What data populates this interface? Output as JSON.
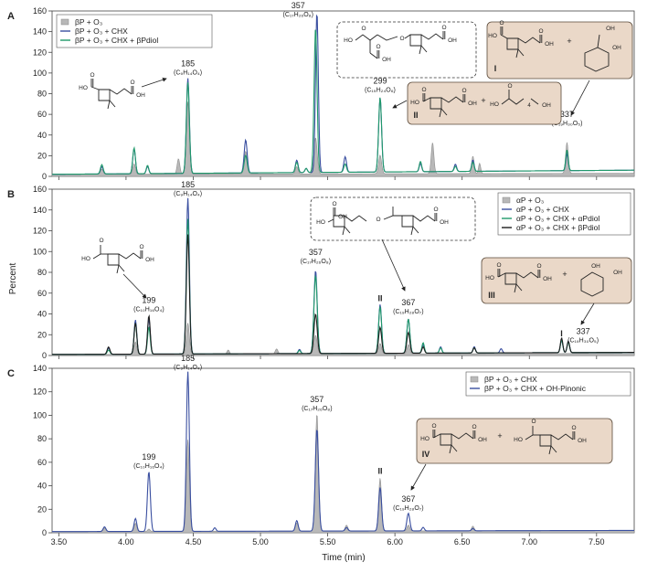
{
  "chart_data": {
    "type": "line",
    "xlabel": "Time (min)",
    "ylabel": "Percent",
    "xlim": [
      3.45,
      7.78
    ],
    "x_ticks": [
      "3.50",
      "4.00",
      "4.50",
      "5.00",
      "5.50",
      "6.00",
      "6.50",
      "7.00",
      "7.50"
    ],
    "x_tick_values": [
      3.5,
      4.0,
      4.5,
      5.0,
      5.5,
      6.0,
      6.5,
      7.0,
      7.5
    ],
    "colors": {
      "gray": "#b8b8b8",
      "blue": "#3a4fa0",
      "green": "#1f9a6a",
      "black": "#1d1d1d",
      "box": "#ead8c8"
    },
    "panels": [
      {
        "letter": "A",
        "ylim": [
          0,
          160
        ],
        "y_ticks": [
          "0",
          "20",
          "40",
          "60",
          "80",
          "100",
          "120",
          "140",
          "160"
        ],
        "legend": [
          "βP + O₃",
          "βP + O₃ + CHX",
          "βP + O₃ + CHX + βPdiol"
        ],
        "series": [
          {
            "name": "βP + O₃",
            "style": "gray-fill",
            "baseline": [
              2,
              3
            ],
            "peaks": [
              [
                3.82,
                5,
                0.01
              ],
              [
                4.06,
                10,
                0.01
              ],
              [
                4.39,
                15,
                0.01
              ],
              [
                4.46,
                70,
                0.011
              ],
              [
                4.89,
                22,
                0.011
              ],
              [
                5.27,
                7,
                0.01
              ],
              [
                5.41,
                35,
                0.012
              ],
              [
                5.89,
                18,
                0.011
              ],
              [
                6.28,
                30,
                0.01
              ],
              [
                6.58,
                17,
                0.009
              ],
              [
                6.63,
                10,
                0.008
              ],
              [
                7.28,
                30,
                0.01
              ]
            ]
          },
          {
            "name": "βP + O₃ + CHX",
            "style": "blue",
            "baseline": [
              2,
              6
            ],
            "peaks": [
              [
                3.82,
                7,
                0.01
              ],
              [
                4.06,
                24,
                0.01
              ],
              [
                4.16,
                7,
                0.009
              ],
              [
                4.46,
                92,
                0.011
              ],
              [
                4.89,
                32,
                0.011
              ],
              [
                5.27,
                12,
                0.01
              ],
              [
                5.34,
                4,
                0.009
              ],
              [
                5.42,
                155,
                0.0105
              ],
              [
                5.63,
                15,
                0.01
              ],
              [
                5.89,
                72,
                0.011
              ],
              [
                6.19,
                8,
                0.009
              ],
              [
                6.45,
                7,
                0.009
              ],
              [
                6.58,
                11,
                0.009
              ],
              [
                7.28,
                16,
                0.009
              ]
            ]
          },
          {
            "name": "βP + O₃ + CHX + βPdiol",
            "style": "green",
            "baseline": [
              2,
              6
            ],
            "peaks": [
              [
                3.82,
                9,
                0.01
              ],
              [
                4.06,
                25,
                0.01
              ],
              [
                4.16,
                8,
                0.009
              ],
              [
                4.46,
                88,
                0.011
              ],
              [
                4.89,
                17,
                0.011
              ],
              [
                5.27,
                10,
                0.01
              ],
              [
                5.34,
                4,
                0.009
              ],
              [
                5.41,
                140,
                0.011
              ],
              [
                5.63,
                8,
                0.01
              ],
              [
                5.89,
                72,
                0.011
              ],
              [
                6.19,
                10,
                0.009
              ],
              [
                6.45,
                5,
                0.009
              ],
              [
                6.58,
                9,
                0.009
              ],
              [
                7.28,
                20,
                0.009
              ]
            ]
          }
        ],
        "annotations": [
          {
            "mz": "185",
            "formula": "(C₉H₁₄O₄)",
            "x": 4.46,
            "y": 96
          },
          {
            "mz": "357",
            "formula": "(C₁₇H₂₆O₈)",
            "x": 5.28,
            "y": 152
          },
          {
            "mz": "299",
            "formula": "(C₁₅H₂₄O₆)",
            "x": 5.89,
            "y": 79
          },
          {
            "mz": "337",
            "formula": "(C₁₉H₃₀O₅)",
            "x": 7.28,
            "y": 47
          }
        ],
        "boxes": [
          {
            "label": "I"
          },
          {
            "label": "II"
          }
        ]
      },
      {
        "letter": "B",
        "ylim": [
          0,
          160
        ],
        "y_ticks": [
          "0",
          "20",
          "40",
          "60",
          "80",
          "100",
          "120",
          "140",
          "160"
        ],
        "legend": [
          "αP + O₃",
          "αP + O₃ + CHX",
          "αP + O₃ + CHX + αPdiol",
          "αP + O₃ + CHX + βPdiol"
        ],
        "series": [
          {
            "name": "αP + O₃",
            "style": "gray-fill",
            "baseline": [
              1,
              2
            ],
            "peaks": [
              [
                4.07,
                12,
                0.01
              ],
              [
                4.46,
                30,
                0.011
              ],
              [
                4.76,
                4,
                0.009
              ],
              [
                5.12,
                5,
                0.01
              ],
              [
                5.41,
                18,
                0.012
              ],
              [
                5.89,
                10,
                0.011
              ],
              [
                6.1,
                9,
                0.01
              ]
            ]
          },
          {
            "name": "αP + O₃ + CHX",
            "style": "blue",
            "baseline": [
              1,
              3
            ],
            "peaks": [
              [
                3.87,
                6,
                0.01
              ],
              [
                4.07,
                33,
                0.01
              ],
              [
                4.17,
                34,
                0.01
              ],
              [
                4.46,
                150,
                0.011
              ],
              [
                5.29,
                4,
                0.009
              ],
              [
                5.41,
                80,
                0.012
              ],
              [
                5.89,
                47,
                0.011
              ],
              [
                6.1,
                33,
                0.011
              ],
              [
                6.21,
                8,
                0.009
              ],
              [
                6.34,
                6,
                0.009
              ],
              [
                6.59,
                6,
                0.009
              ],
              [
                6.79,
                4,
                0.009
              ],
              [
                7.24,
                12,
                0.009
              ],
              [
                7.29,
                11,
                0.009
              ]
            ]
          },
          {
            "name": "αP + O₃ + CHX + αPdiol",
            "style": "green",
            "baseline": [
              1,
              3
            ],
            "peaks": [
              [
                3.87,
                4,
                0.01
              ],
              [
                4.07,
                30,
                0.01
              ],
              [
                4.17,
                26,
                0.01
              ],
              [
                4.46,
                130,
                0.011
              ],
              [
                5.29,
                3,
                0.009
              ],
              [
                5.41,
                75,
                0.012
              ],
              [
                5.89,
                45,
                0.011
              ],
              [
                6.1,
                33,
                0.011
              ],
              [
                6.21,
                10,
                0.009
              ],
              [
                6.34,
                5,
                0.009
              ],
              [
                6.59,
                5,
                0.009
              ],
              [
                7.24,
                12,
                0.009
              ],
              [
                7.29,
                10,
                0.009
              ]
            ]
          },
          {
            "name": "αP + O₃ + CHX + βPdiol",
            "style": "black",
            "baseline": [
              1,
              3
            ],
            "peaks": [
              [
                3.87,
                7,
                0.01
              ],
              [
                4.07,
                30,
                0.01
              ],
              [
                4.17,
                37,
                0.01
              ],
              [
                4.46,
                115,
                0.011
              ],
              [
                5.41,
                38,
                0.012
              ],
              [
                5.89,
                25,
                0.011
              ],
              [
                6.1,
                20,
                0.011
              ],
              [
                6.21,
                6,
                0.009
              ],
              [
                6.59,
                5,
                0.009
              ],
              [
                7.24,
                14,
                0.009
              ],
              [
                7.29,
                11,
                0.009
              ]
            ]
          }
        ],
        "annotations": [
          {
            "mz": "185",
            "formula": "(C₉H₁₄O₄)",
            "x": 4.46,
            "y": 151
          },
          {
            "mz": "199",
            "formula": "(C₁₀H₁₆O₄)",
            "x": 4.17,
            "y": 40
          },
          {
            "mz": "357",
            "formula": "(C₁₇H₂₆O₈)",
            "x": 5.41,
            "y": 86
          },
          {
            "mz": "367",
            "formula": "(C₁₉H₂₈O₇)",
            "x": 6.1,
            "y": 38
          },
          {
            "mz": "337",
            "formula": "(C₁₉H₃₀O₅)",
            "x": 7.4,
            "y": 10
          }
        ],
        "peak_tags": [
          {
            "tag": "II",
            "x": 5.89,
            "y": 49
          },
          {
            "tag": "I",
            "x": 7.24,
            "y": 15
          }
        ],
        "boxes": [
          {
            "label": "III"
          }
        ]
      },
      {
        "letter": "C",
        "ylim": [
          0,
          140
        ],
        "y_ticks": [
          "0",
          "20",
          "40",
          "60",
          "80",
          "100",
          "120",
          "140"
        ],
        "legend": [
          "βP + O₃ + CHX",
          "βP + O₃ + CHX + OH-Pinonic"
        ],
        "series": [
          {
            "name": "βP + O₃ + CHX",
            "style": "gray-fill",
            "baseline": [
              1,
              2
            ],
            "peaks": [
              [
                3.84,
                3,
                0.01
              ],
              [
                4.07,
                7,
                0.01
              ],
              [
                4.17,
                2,
                0.009
              ],
              [
                4.46,
                78,
                0.011
              ],
              [
                5.27,
                7,
                0.01
              ],
              [
                5.42,
                100,
                0.012
              ],
              [
                5.64,
                5,
                0.01
              ],
              [
                5.89,
                45,
                0.011
              ],
              [
                6.1,
                5,
                0.01
              ],
              [
                6.58,
                4,
                0.009
              ]
            ]
          },
          {
            "name": "βP + O₃ + CHX + OH-Pinonic",
            "style": "blue",
            "baseline": [
              1,
              2
            ],
            "peaks": [
              [
                3.84,
                4,
                0.01
              ],
              [
                4.07,
                11,
                0.01
              ],
              [
                4.17,
                51,
                0.011
              ],
              [
                4.46,
                136,
                0.011
              ],
              [
                4.66,
                3,
                0.009
              ],
              [
                5.27,
                9,
                0.01
              ],
              [
                5.42,
                87,
                0.012
              ],
              [
                5.64,
                3,
                0.01
              ],
              [
                5.89,
                37,
                0.011
              ],
              [
                6.1,
                15,
                0.011
              ],
              [
                6.21,
                3,
                0.009
              ],
              [
                6.58,
                2,
                0.009
              ]
            ]
          }
        ],
        "annotations": [
          {
            "mz": "185",
            "formula": "(C₉H₁₄O₄)",
            "x": 4.46,
            "y": 137
          },
          {
            "mz": "199",
            "formula": "(C₁₀H₁₆O₄)",
            "x": 4.17,
            "y": 53
          },
          {
            "mz": "357",
            "formula": "(C₁₇H₂₆O₈)",
            "x": 5.42,
            "y": 102
          },
          {
            "mz": "367",
            "formula": "(C₁₉H₂₈O₇)",
            "x": 6.1,
            "y": 17
          }
        ],
        "peak_tags": [
          {
            "tag": "II",
            "x": 5.89,
            "y": 47
          }
        ],
        "boxes": [
          {
            "label": "IV"
          }
        ]
      }
    ],
    "structure_atoms": {
      "HO": "HO",
      "OH": "OH",
      "O": "O",
      "plus": "+",
      "n4": "4"
    }
  }
}
